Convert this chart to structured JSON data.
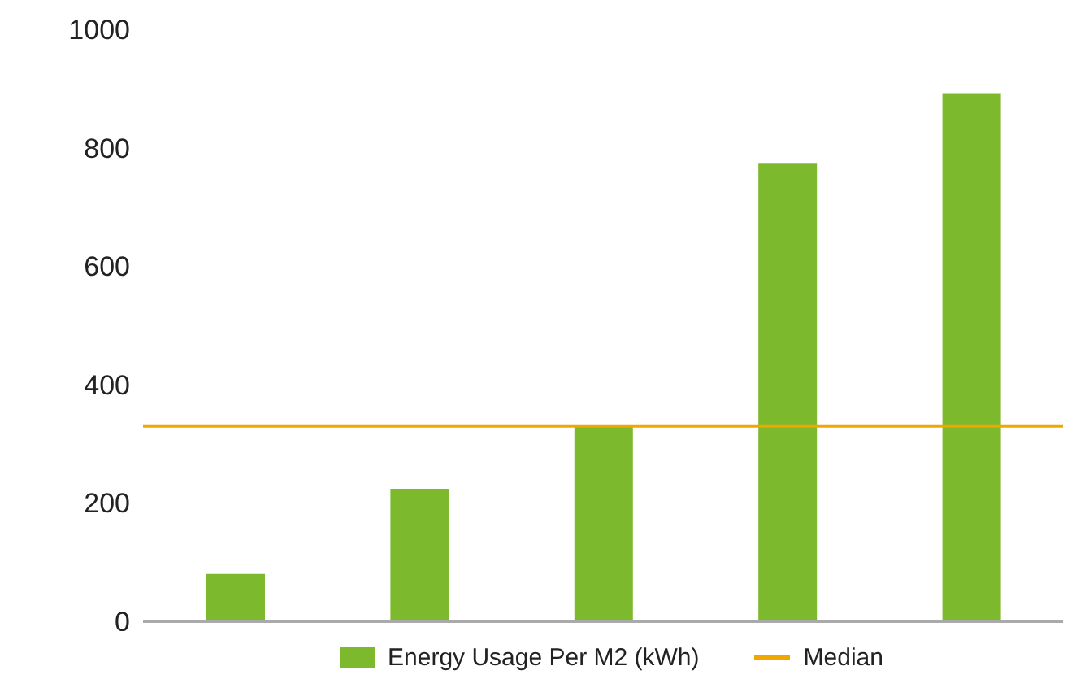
{
  "chart_data": {
    "type": "bar",
    "categories": [
      null,
      null,
      null,
      null,
      null
    ],
    "series": [
      {
        "name": "Energy Usage Per M2 (kWh)",
        "color": "#7cb92c",
        "values": [
          80,
          224,
          330,
          773,
          892
        ]
      }
    ],
    "ylim": [
      0,
      1000
    ],
    "yticks": [
      0,
      200,
      400,
      600,
      800,
      1000
    ],
    "legend": "bottom",
    "ref_lines": [
      {
        "axis": "y",
        "value": 330,
        "label": "Median",
        "color": "#f0a800"
      }
    ]
  }
}
